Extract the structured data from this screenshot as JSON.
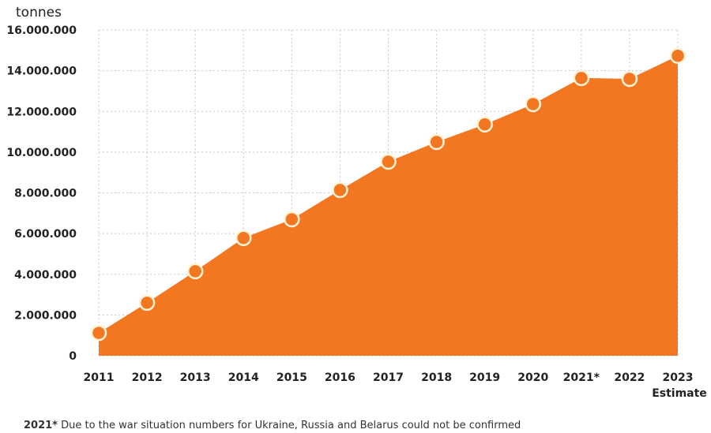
{
  "chart_data": {
    "type": "area",
    "ylabel": "tonnes",
    "ylim": [
      0,
      16000000
    ],
    "yticks": [
      0,
      2000000,
      4000000,
      6000000,
      8000000,
      10000000,
      12000000,
      14000000,
      16000000
    ],
    "ytick_labels": [
      "0",
      "2.000.000",
      "4.000.000",
      "6.000.000",
      "8.000.000",
      "10.000.000",
      "12.000.000",
      "14.000.000",
      "16.000.000"
    ],
    "categories": [
      "2011",
      "2012",
      "2013",
      "2014",
      "2015",
      "2016",
      "2017",
      "2018",
      "2019",
      "2020",
      "2021*",
      "2022",
      "2023"
    ],
    "category_sublabels": {
      "2023": "Estimate"
    },
    "values": [
      1120000,
      2600000,
      4150000,
      5780000,
      6700000,
      8140000,
      9530000,
      10500000,
      11360000,
      12360000,
      13640000,
      13600000,
      14730000
    ],
    "grid": true,
    "footnote_bold": "2021*",
    "footnote": " Due to the war situation numbers for Ukraine, Russia and Belarus could not be confirmed",
    "colors": {
      "fill": "#f37721",
      "marker_stroke": "#fff3d6",
      "grid": "#c8c8c8"
    }
  }
}
